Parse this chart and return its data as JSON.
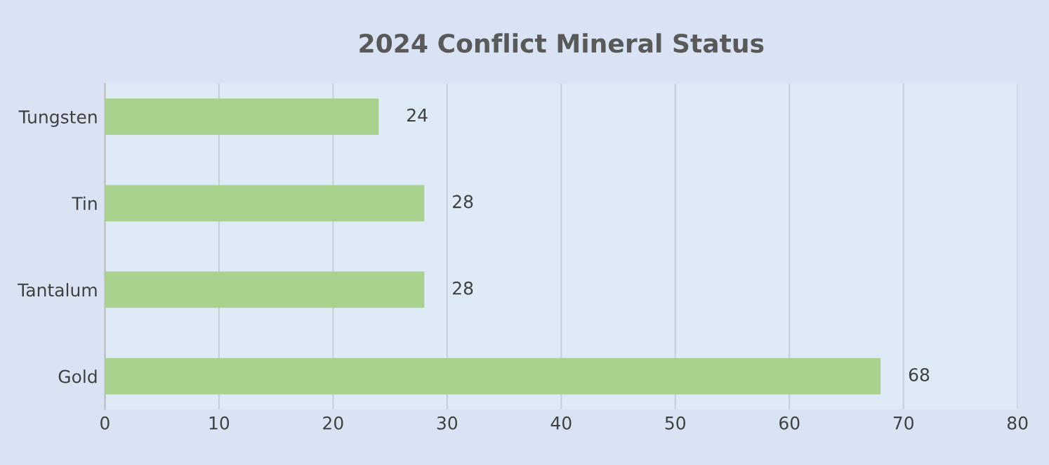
{
  "chart_data": {
    "type": "bar",
    "orientation": "horizontal",
    "title": "2024 Conflict Mineral Status",
    "categories": [
      "Tungsten",
      "Tin",
      "Tantalum",
      "Gold"
    ],
    "values": [
      24,
      28,
      28,
      68
    ],
    "color": "#a9d18e",
    "xlim": [
      0,
      80
    ],
    "xticks": [
      0,
      10,
      20,
      30,
      40,
      50,
      60,
      70,
      80
    ],
    "grid": "x",
    "data_labels": true
  }
}
